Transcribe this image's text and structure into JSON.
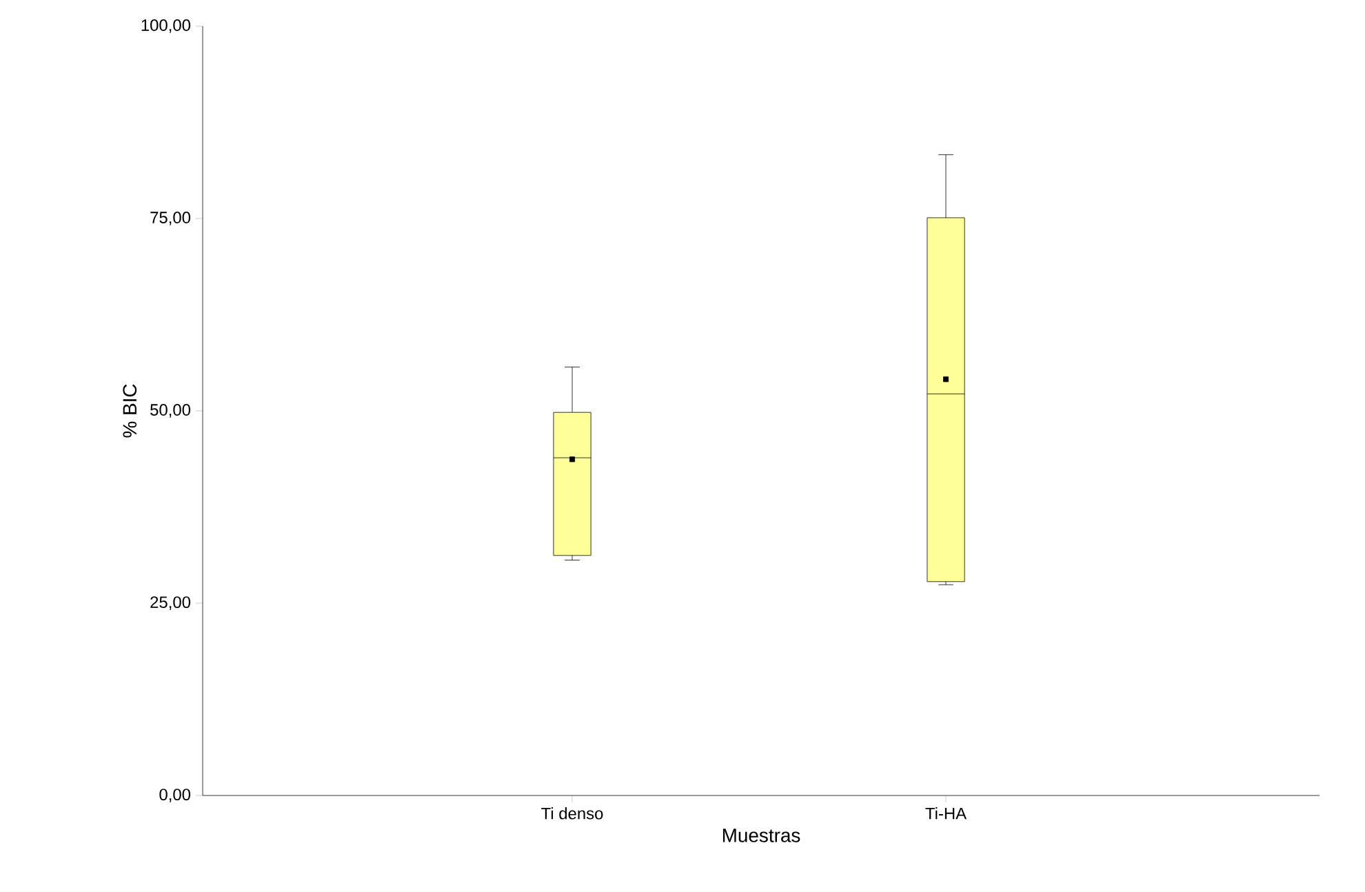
{
  "chart_data": {
    "type": "box",
    "xlabel": "Muestras",
    "ylabel": "% BIC",
    "categories": [
      "Ti denso",
      "Ti-HA"
    ],
    "color": "#ffff99",
    "boxes": [
      {
        "low": 30.6,
        "q1": 31.2,
        "median": 43.9,
        "q3": 49.8,
        "high": 55.7,
        "mean": 43.7
      },
      {
        "low": 27.4,
        "q1": 27.8,
        "median": 52.2,
        "q3": 75.1,
        "high": 83.3,
        "mean": 54.1
      }
    ],
    "ylim": [
      0,
      100
    ],
    "yticks": [
      {
        "value": 0,
        "label": "0,00"
      },
      {
        "value": 25,
        "label": "25,00"
      },
      {
        "value": 50,
        "label": "50,00"
      },
      {
        "value": 75,
        "label": "75,00"
      },
      {
        "value": 100,
        "label": "100,00"
      }
    ]
  }
}
